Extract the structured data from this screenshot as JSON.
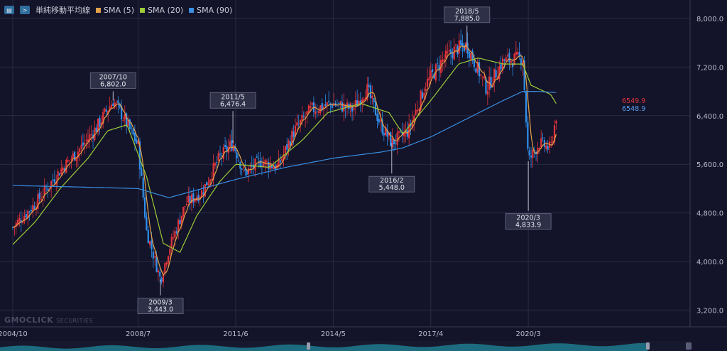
{
  "toolbar": {
    "chat_icon": "chat-icon",
    "expand_icon": "chevron-right-icon"
  },
  "legend": {
    "title": "単純移動平均線",
    "sma5_label": "SMA (5)",
    "sma20_label": "SMA (20)",
    "sma90_label": "SMA (90)"
  },
  "colors": {
    "background": "#131329",
    "grid": "#2a2c46",
    "up": "#e2333b",
    "down": "#2f8fea",
    "sma5": "#e2a24a",
    "sma20": "#9ccc38",
    "sma90": "#3a8fe0",
    "price_label_red": "#e2333b",
    "price_label_blue": "#5aa0ee"
  },
  "watermark": {
    "brand": "GMOCLICK",
    "suffix": "SECURITIES"
  },
  "chart_data": {
    "type": "candlestick",
    "y_axis": {
      "ticks": [
        "8,000.0",
        "7,200.0",
        "6,400.0",
        "5,600.0",
        "4,800.0",
        "4,000.0",
        "3,200.0"
      ],
      "tick_values": [
        8000,
        7200,
        6400,
        5600,
        4800,
        4000,
        3200
      ]
    },
    "x_axis": {
      "ticks": [
        "2004/10",
        "2008/7",
        "2011/6",
        "2014/5",
        "2017/4",
        "2020/3"
      ]
    },
    "last_price_labels": [
      {
        "text": "6549.9",
        "color": "#e2333b"
      },
      {
        "text": "6548.9",
        "color": "#5aa0ee"
      }
    ],
    "annotations": [
      {
        "date": "2007/10",
        "value": "6,802.0"
      },
      {
        "date": "2009/3",
        "value": "3,443.0"
      },
      {
        "date": "2011/5",
        "value": "6,476.4"
      },
      {
        "date": "2016/2",
        "value": "5,448.0"
      },
      {
        "date": "2018/5",
        "value": "7,885.0"
      },
      {
        "date": "2020/3",
        "value": "4,833.9"
      }
    ],
    "price_path": [
      [
        "2004/10",
        4560
      ],
      [
        "2005/6",
        4950
      ],
      [
        "2006/3",
        5500
      ],
      [
        "2006/10",
        5850
      ],
      [
        "2007/4",
        6200
      ],
      [
        "2007/10",
        6650
      ],
      [
        "2008/2",
        6350
      ],
      [
        "2008/7",
        5900
      ],
      [
        "2008/10",
        4500
      ],
      [
        "2009/3",
        3700
      ],
      [
        "2009/6",
        4200
      ],
      [
        "2009/12",
        4950
      ],
      [
        "2010/6",
        5150
      ],
      [
        "2010/12",
        5700
      ],
      [
        "2011/5",
        5950
      ],
      [
        "2011/9",
        5450
      ],
      [
        "2012/3",
        5650
      ],
      [
        "2012/9",
        5550
      ],
      [
        "2013/3",
        6150
      ],
      [
        "2013/9",
        6500
      ],
      [
        "2014/5",
        6600
      ],
      [
        "2014/12",
        6500
      ],
      [
        "2015/5",
        6850
      ],
      [
        "2015/10",
        6250
      ],
      [
        "2016/2",
        5950
      ],
      [
        "2016/8",
        6150
      ],
      [
        "2017/2",
        6900
      ],
      [
        "2017/8",
        7300
      ],
      [
        "2018/1",
        7500
      ],
      [
        "2018/5",
        7550
      ],
      [
        "2018/12",
        6850
      ],
      [
        "2019/6",
        7300
      ],
      [
        "2020/1",
        7350
      ],
      [
        "2020/3",
        5650
      ],
      [
        "2020/7",
        5950
      ],
      [
        "2020/11",
        5850
      ],
      [
        "2021/1",
        6400
      ]
    ],
    "sma20": [
      [
        "2004/10",
        4280
      ],
      [
        "2005/6",
        4650
      ],
      [
        "2006/3",
        5200
      ],
      [
        "2007/1",
        5700
      ],
      [
        "2007/8",
        6150
      ],
      [
        "2008/3",
        6250
      ],
      [
        "2008/10",
        5400
      ],
      [
        "2009/4",
        4300
      ],
      [
        "2009/10",
        4150
      ],
      [
        "2010/4",
        4750
      ],
      [
        "2010/12",
        5300
      ],
      [
        "2011/6",
        5600
      ],
      [
        "2012/6",
        5550
      ],
      [
        "2013/6",
        6000
      ],
      [
        "2014/3",
        6450
      ],
      [
        "2015/3",
        6600
      ],
      [
        "2016/1",
        6450
      ],
      [
        "2016/6",
        6100
      ],
      [
        "2017/4",
        6650
      ],
      [
        "2018/2",
        7250
      ],
      [
        "2018/9",
        7350
      ],
      [
        "2019/6",
        7250
      ],
      [
        "2020/1",
        7250
      ],
      [
        "2020/4",
        6900
      ],
      [
        "2020/11",
        6750
      ],
      [
        "2021/1",
        6600
      ]
    ],
    "sma90": [
      [
        "2004/10",
        5250
      ],
      [
        "2006/6",
        5230
      ],
      [
        "2008/7",
        5200
      ],
      [
        "2009/6",
        5050
      ],
      [
        "2010/6",
        5200
      ],
      [
        "2011/6",
        5350
      ],
      [
        "2012/12",
        5550
      ],
      [
        "2014/5",
        5700
      ],
      [
        "2015/10",
        5800
      ],
      [
        "2016/6",
        5870
      ],
      [
        "2017/4",
        6050
      ],
      [
        "2018/5",
        6350
      ],
      [
        "2019/6",
        6650
      ],
      [
        "2020/1",
        6800
      ],
      [
        "2020/6",
        6800
      ],
      [
        "2021/1",
        6780
      ]
    ]
  }
}
